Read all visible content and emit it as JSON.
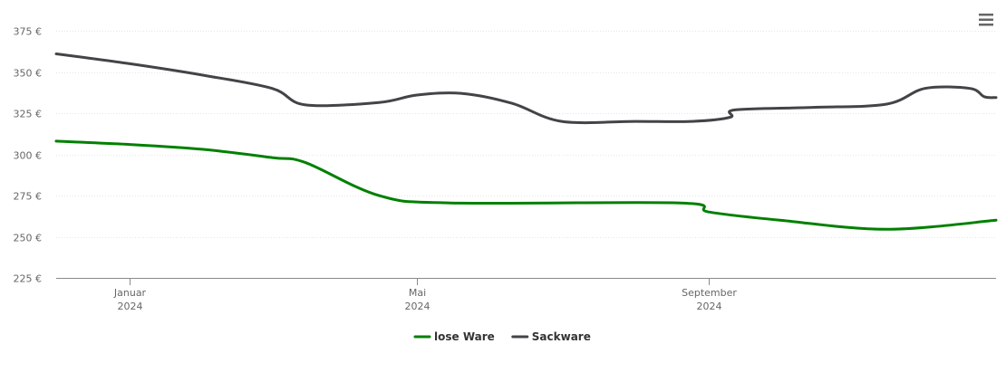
{
  "menu": {
    "icon": "hamburger-menu-icon"
  },
  "chart_data": {
    "type": "line",
    "title": "",
    "xlabel": "",
    "ylabel": "",
    "ylim": [
      225,
      375
    ],
    "y_ticks": [
      225,
      250,
      275,
      300,
      325,
      350,
      375
    ],
    "y_tick_labels": [
      "225 €",
      "250 €",
      "275 €",
      "300 €",
      "325 €",
      "350 €",
      "375 €"
    ],
    "x_range": [
      "2023-12-01",
      "2024-12-31"
    ],
    "x_ticks": [
      {
        "date": "2024-01-01",
        "month": "Januar",
        "year": "2024"
      },
      {
        "date": "2024-05-01",
        "month": "Mai",
        "year": "2024"
      },
      {
        "date": "2024-09-01",
        "month": "September",
        "year": "2024"
      }
    ],
    "grid": true,
    "legend_position": "bottom-center",
    "series": [
      {
        "name": "lose Ware",
        "color": "#008000",
        "points": [
          [
            "2023-12-01",
            308
          ],
          [
            "2024-01-01",
            306
          ],
          [
            "2024-02-01",
            303
          ],
          [
            "2024-03-01",
            298
          ],
          [
            "2024-03-15",
            295
          ],
          [
            "2024-04-15",
            275
          ],
          [
            "2024-05-15",
            270.5
          ],
          [
            "2024-08-20",
            270.5
          ],
          [
            "2024-09-01",
            265
          ],
          [
            "2024-10-01",
            260
          ],
          [
            "2024-11-15",
            254.5
          ],
          [
            "2024-12-31",
            260
          ]
        ]
      },
      {
        "name": "Sackware",
        "color": "#434348",
        "points": [
          [
            "2023-12-01",
            361
          ],
          [
            "2024-01-01",
            355
          ],
          [
            "2024-02-01",
            348
          ],
          [
            "2024-03-01",
            340
          ],
          [
            "2024-03-15",
            330
          ],
          [
            "2024-04-15",
            331.5
          ],
          [
            "2024-05-01",
            336
          ],
          [
            "2024-05-20",
            337
          ],
          [
            "2024-06-10",
            331
          ],
          [
            "2024-07-01",
            320
          ],
          [
            "2024-08-01",
            320
          ],
          [
            "2024-08-25",
            320
          ],
          [
            "2024-09-10",
            322.5
          ],
          [
            "2024-09-12",
            327
          ],
          [
            "2024-10-15",
            328.5
          ],
          [
            "2024-11-15",
            330.5
          ],
          [
            "2024-12-01",
            340
          ],
          [
            "2024-12-20",
            340
          ],
          [
            "2024-12-26",
            335
          ],
          [
            "2024-12-31",
            334.5
          ]
        ]
      }
    ]
  }
}
